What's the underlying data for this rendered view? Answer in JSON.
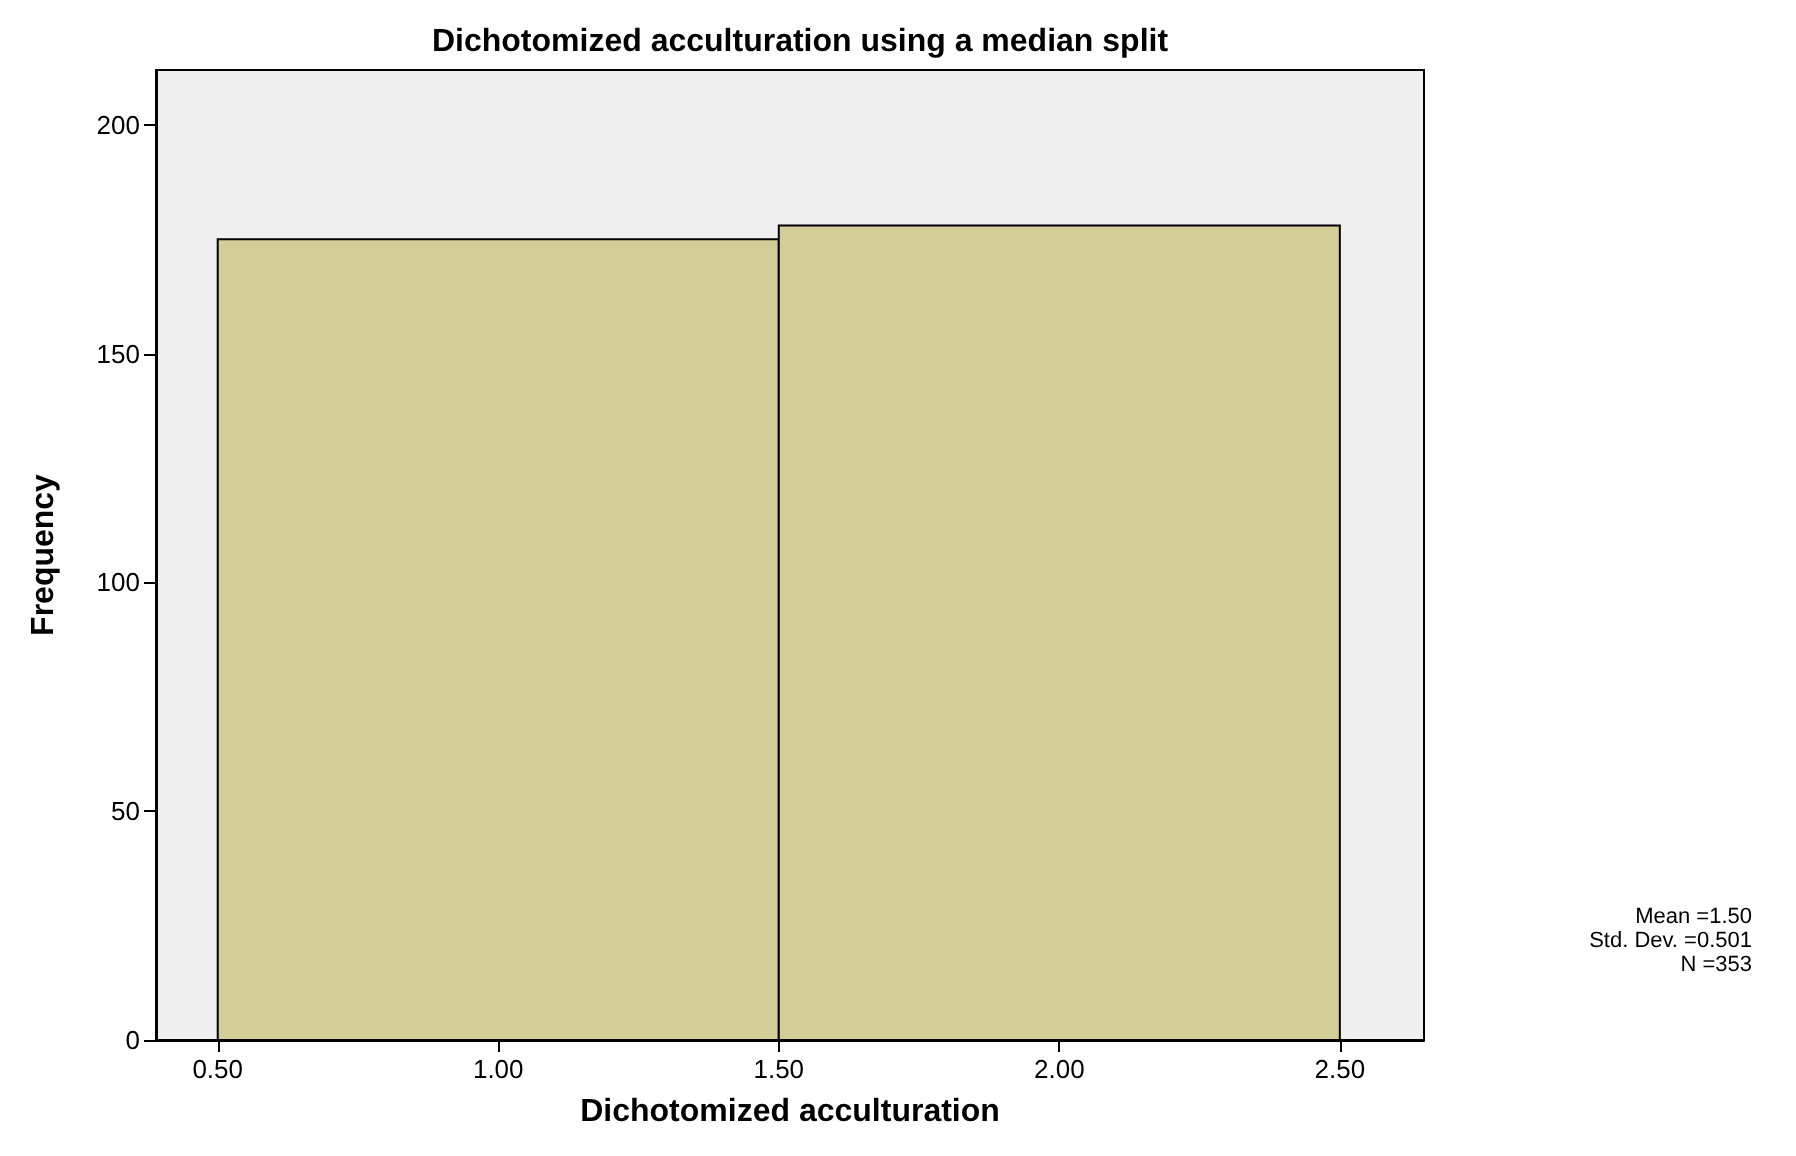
{
  "chart_data": {
    "type": "histogram",
    "title": "Dichotomized acculturation using a median split",
    "xlabel": "Dichotomized acculturation",
    "ylabel": "Frequency",
    "bins": [
      0.5,
      1.5,
      2.5
    ],
    "values": [
      175,
      178
    ],
    "color": "#d3ce97",
    "xlim": [
      0.39,
      2.65
    ],
    "xticks": [
      {
        "value": 0.5,
        "label": "0.50"
      },
      {
        "value": 1,
        "label": "1.00"
      },
      {
        "value": 1.5,
        "label": "1.50"
      },
      {
        "value": 2,
        "label": "2.00"
      },
      {
        "value": 2.5,
        "label": "2.50"
      }
    ],
    "ylim": [
      0,
      212
    ],
    "yticks": [
      0,
      50,
      100,
      150,
      200
    ],
    "grid": false,
    "annotations": [
      "Mean =1.50",
      "Std. Dev. =0.501",
      "N =353"
    ]
  }
}
